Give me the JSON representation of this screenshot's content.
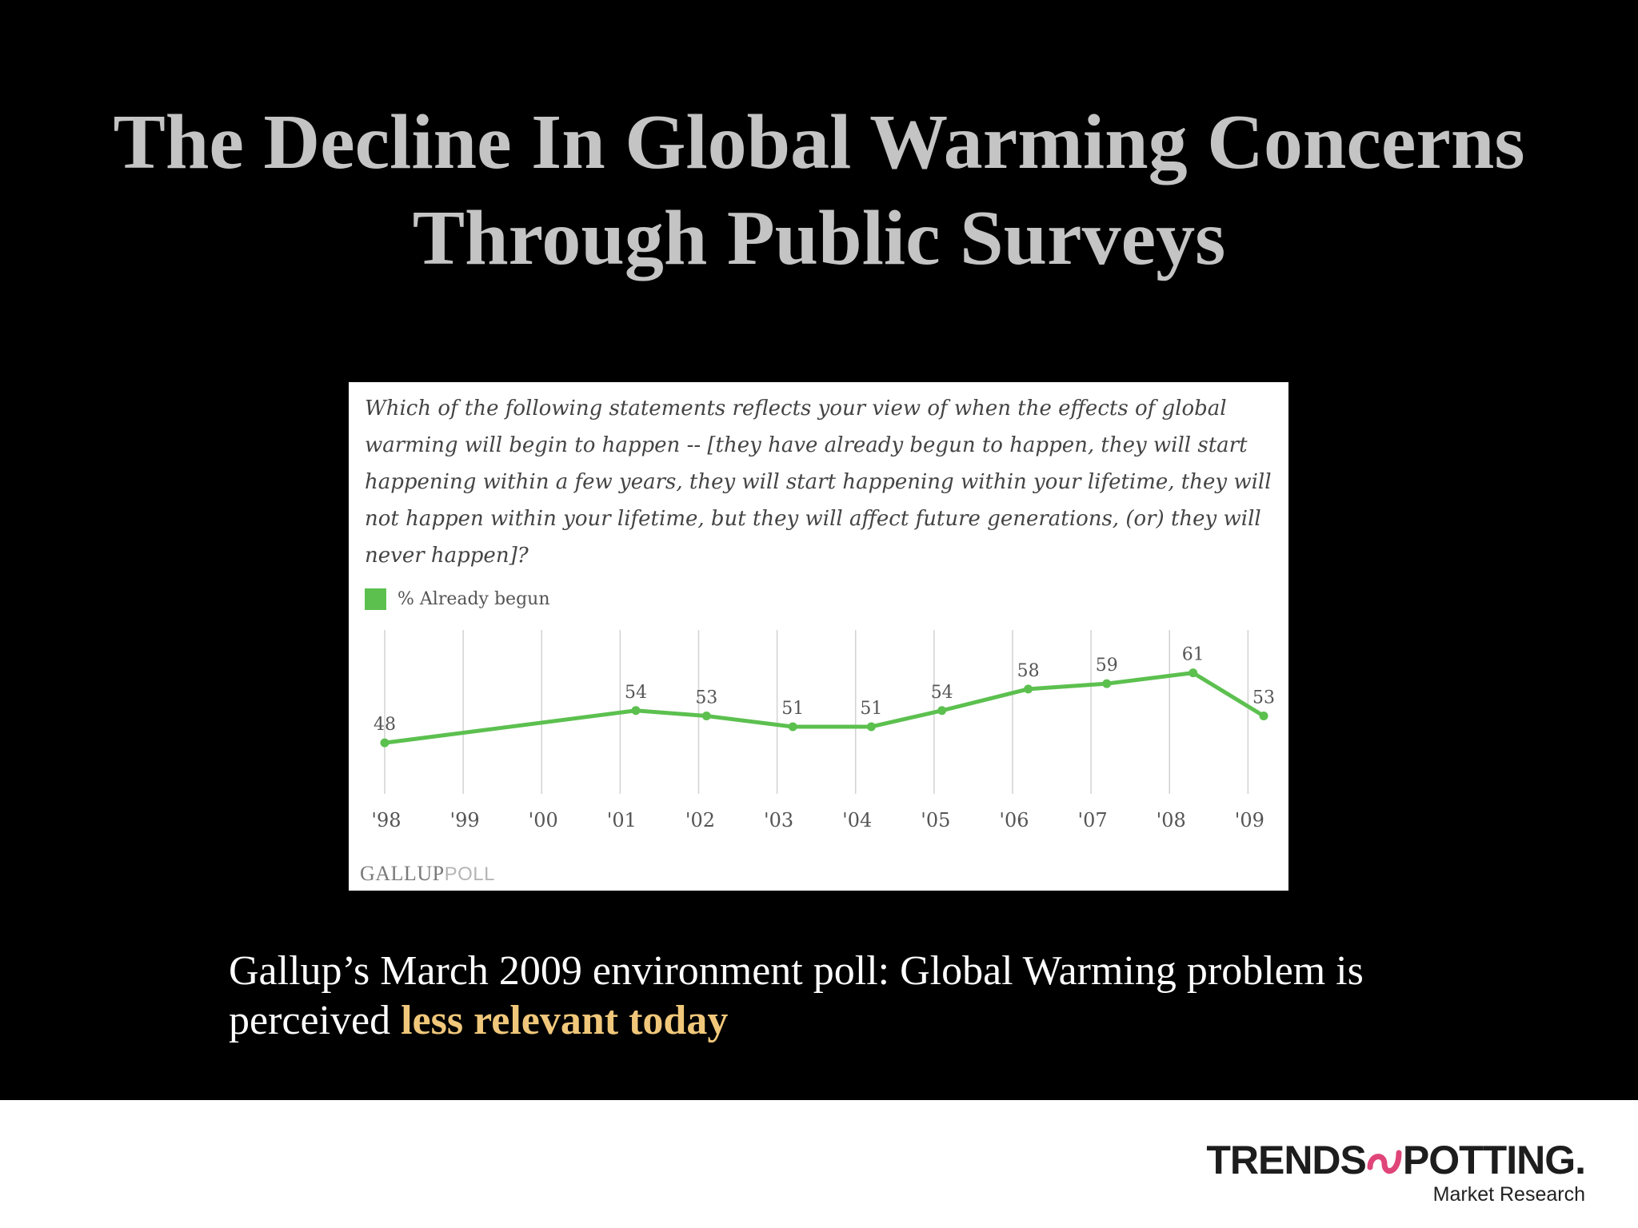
{
  "title": {
    "line1": "The Decline In Global Warming Concerns",
    "line2": "Through Public Surveys"
  },
  "chart_card": {
    "question": "Which of the following statements reflects your view of when the effects of global warming will begin to happen -- [they have already begun to happen, they will start happening within a few years, they will start happening within your lifetime, they will not happen within your lifetime, but they will affect future generations, (or) they will never happen]?",
    "source_strong": "GALLUP",
    "source_light": "POLL"
  },
  "chart_data": {
    "type": "line",
    "categories": [
      "'98",
      "'99",
      "'00",
      "'01",
      "'02",
      "'03",
      "'04",
      "'05",
      "'06",
      "'07",
      "'08",
      "'09"
    ],
    "series": [
      {
        "name": "% Already begun",
        "x": [
          1998.0,
          2001.2,
          2002.1,
          2003.2,
          2004.2,
          2005.1,
          2006.2,
          2007.2,
          2008.3,
          2009.2
        ],
        "values": [
          48,
          54,
          53,
          51,
          51,
          54,
          58,
          59,
          61,
          53
        ],
        "color": "#5cc04f"
      }
    ],
    "grid": "vertical",
    "xlabel": "",
    "ylabel": "",
    "ylim": [
      40,
      66
    ]
  },
  "caption": {
    "text_plain": "Gallup’s March 2009 environment poll: Global Warming problem is perceived",
    "text_highlight": "less relevant today",
    "highlight_color": "#f0c77a"
  },
  "brand": {
    "name_left": "TRENDS",
    "name_right": "POTTING.",
    "subtitle": "Market Research",
    "mark_color": "#e0457a"
  }
}
